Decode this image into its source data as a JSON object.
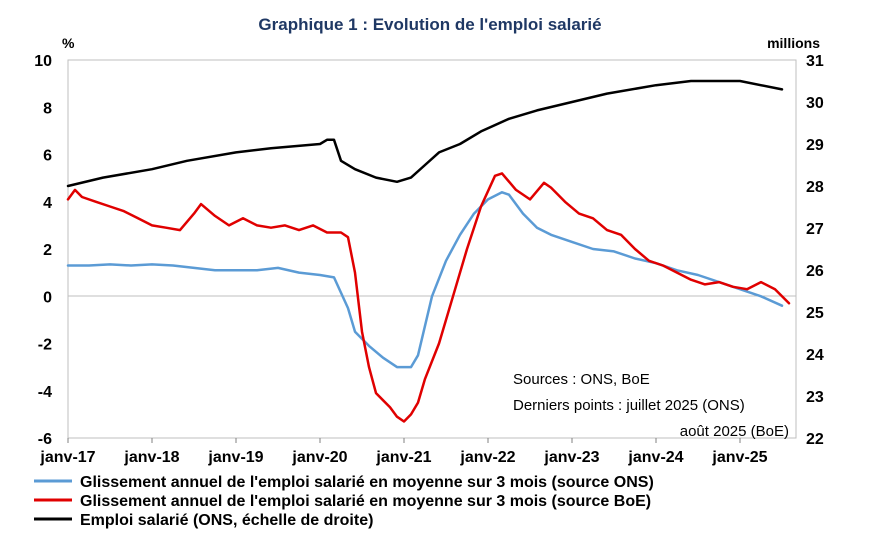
{
  "chart_data": {
    "type": "line",
    "title": "Graphique 1 : Evolution de l'emploi salarié",
    "left_unit": "%",
    "right_unit": "millions",
    "y_left": {
      "min": -6,
      "max": 10,
      "ticks": [
        "10",
        "8",
        "6",
        "4",
        "2",
        "0",
        "-2",
        "-4",
        "-6"
      ]
    },
    "y_right": {
      "min": 22,
      "max": 31,
      "ticks": [
        "31",
        "30",
        "29",
        "28",
        "27",
        "26",
        "25",
        "24",
        "23",
        "22"
      ]
    },
    "x_range": [
      "2017-01",
      "2025-09"
    ],
    "x_ticks": [
      "janv-17",
      "janv-18",
      "janv-19",
      "janv-20",
      "janv-21",
      "janv-22",
      "janv-23",
      "janv-24",
      "janv-25"
    ],
    "grid": "none",
    "legend_position": "bottom",
    "annotation": {
      "line1": "Sources : ONS, BoE",
      "line2": "Derniers points : juillet 2025 (ONS)",
      "line3": "août 2025 (BoE)"
    },
    "series": [
      {
        "name": "Glissement annuel de l'emploi salarié en moyenne sur 3 mois (source ONS)",
        "axis": "left",
        "color": "#5B9BD5",
        "points": [
          [
            "2017-01",
            1.3
          ],
          [
            "2017-04",
            1.3
          ],
          [
            "2017-07",
            1.35
          ],
          [
            "2017-10",
            1.3
          ],
          [
            "2018-01",
            1.35
          ],
          [
            "2018-04",
            1.3
          ],
          [
            "2018-07",
            1.2
          ],
          [
            "2018-10",
            1.1
          ],
          [
            "2019-01",
            1.1
          ],
          [
            "2019-04",
            1.1
          ],
          [
            "2019-07",
            1.2
          ],
          [
            "2019-10",
            1.0
          ],
          [
            "2020-01",
            0.9
          ],
          [
            "2020-03",
            0.8
          ],
          [
            "2020-05",
            -0.5
          ],
          [
            "2020-06",
            -1.5
          ],
          [
            "2020-08",
            -2.1
          ],
          [
            "2020-10",
            -2.6
          ],
          [
            "2020-12",
            -3.0
          ],
          [
            "2021-02",
            -3.0
          ],
          [
            "2021-03",
            -2.5
          ],
          [
            "2021-05",
            0.0
          ],
          [
            "2021-07",
            1.5
          ],
          [
            "2021-09",
            2.6
          ],
          [
            "2021-11",
            3.5
          ],
          [
            "2022-01",
            4.1
          ],
          [
            "2022-03",
            4.4
          ],
          [
            "2022-04",
            4.3
          ],
          [
            "2022-06",
            3.5
          ],
          [
            "2022-08",
            2.9
          ],
          [
            "2022-10",
            2.6
          ],
          [
            "2023-01",
            2.3
          ],
          [
            "2023-04",
            2.0
          ],
          [
            "2023-07",
            1.9
          ],
          [
            "2023-10",
            1.6
          ],
          [
            "2024-01",
            1.4
          ],
          [
            "2024-04",
            1.1
          ],
          [
            "2024-07",
            0.9
          ],
          [
            "2024-10",
            0.6
          ],
          [
            "2025-01",
            0.3
          ],
          [
            "2025-04",
            0.0
          ],
          [
            "2025-07",
            -0.4
          ]
        ]
      },
      {
        "name": "Glissement annuel de l'emploi salarié en moyenne sur 3 mois (source BoE)",
        "axis": "left",
        "color": "#E00000",
        "points": [
          [
            "2017-01",
            4.1
          ],
          [
            "2017-02",
            4.5
          ],
          [
            "2017-03",
            4.2
          ],
          [
            "2017-05",
            4.0
          ],
          [
            "2017-07",
            3.8
          ],
          [
            "2017-09",
            3.6
          ],
          [
            "2017-11",
            3.3
          ],
          [
            "2018-01",
            3.0
          ],
          [
            "2018-03",
            2.9
          ],
          [
            "2018-05",
            2.8
          ],
          [
            "2018-07",
            3.5
          ],
          [
            "2018-08",
            3.9
          ],
          [
            "2018-10",
            3.4
          ],
          [
            "2018-12",
            3.0
          ],
          [
            "2019-02",
            3.3
          ],
          [
            "2019-04",
            3.0
          ],
          [
            "2019-06",
            2.9
          ],
          [
            "2019-08",
            3.0
          ],
          [
            "2019-10",
            2.8
          ],
          [
            "2019-12",
            3.0
          ],
          [
            "2020-02",
            2.7
          ],
          [
            "2020-04",
            2.7
          ],
          [
            "2020-05",
            2.5
          ],
          [
            "2020-06",
            1.0
          ],
          [
            "2020-07",
            -1.5
          ],
          [
            "2020-08",
            -3.0
          ],
          [
            "2020-09",
            -4.1
          ],
          [
            "2020-11",
            -4.7
          ],
          [
            "2020-12",
            -5.1
          ],
          [
            "2021-01",
            -5.3
          ],
          [
            "2021-02",
            -5.0
          ],
          [
            "2021-03",
            -4.5
          ],
          [
            "2021-04",
            -3.5
          ],
          [
            "2021-06",
            -2.0
          ],
          [
            "2021-08",
            0.0
          ],
          [
            "2021-10",
            2.0
          ],
          [
            "2021-12",
            3.8
          ],
          [
            "2022-02",
            5.1
          ],
          [
            "2022-03",
            5.2
          ],
          [
            "2022-05",
            4.5
          ],
          [
            "2022-07",
            4.1
          ],
          [
            "2022-09",
            4.8
          ],
          [
            "2022-10",
            4.6
          ],
          [
            "2022-12",
            4.0
          ],
          [
            "2023-02",
            3.5
          ],
          [
            "2023-04",
            3.3
          ],
          [
            "2023-06",
            2.8
          ],
          [
            "2023-08",
            2.6
          ],
          [
            "2023-10",
            2.0
          ],
          [
            "2023-12",
            1.5
          ],
          [
            "2024-02",
            1.3
          ],
          [
            "2024-04",
            1.0
          ],
          [
            "2024-06",
            0.7
          ],
          [
            "2024-08",
            0.5
          ],
          [
            "2024-10",
            0.6
          ],
          [
            "2024-12",
            0.4
          ],
          [
            "2025-02",
            0.3
          ],
          [
            "2025-04",
            0.6
          ],
          [
            "2025-06",
            0.3
          ],
          [
            "2025-08",
            -0.3
          ]
        ]
      },
      {
        "name": "Emploi salarié (ONS, échelle de droite)",
        "axis": "right",
        "color": "#000000",
        "points": [
          [
            "2017-01",
            28.0
          ],
          [
            "2017-06",
            28.2
          ],
          [
            "2018-01",
            28.4
          ],
          [
            "2018-06",
            28.6
          ],
          [
            "2019-01",
            28.8
          ],
          [
            "2019-06",
            28.9
          ],
          [
            "2020-01",
            29.0
          ],
          [
            "2020-02",
            29.1
          ],
          [
            "2020-03",
            29.1
          ],
          [
            "2020-04",
            28.6
          ],
          [
            "2020-06",
            28.4
          ],
          [
            "2020-09",
            28.2
          ],
          [
            "2020-12",
            28.1
          ],
          [
            "2021-02",
            28.2
          ],
          [
            "2021-04",
            28.5
          ],
          [
            "2021-06",
            28.8
          ],
          [
            "2021-09",
            29.0
          ],
          [
            "2021-12",
            29.3
          ],
          [
            "2022-04",
            29.6
          ],
          [
            "2022-08",
            29.8
          ],
          [
            "2023-01",
            30.0
          ],
          [
            "2023-06",
            30.2
          ],
          [
            "2024-01",
            30.4
          ],
          [
            "2024-06",
            30.5
          ],
          [
            "2025-01",
            30.5
          ],
          [
            "2025-07",
            30.3
          ]
        ]
      }
    ]
  }
}
